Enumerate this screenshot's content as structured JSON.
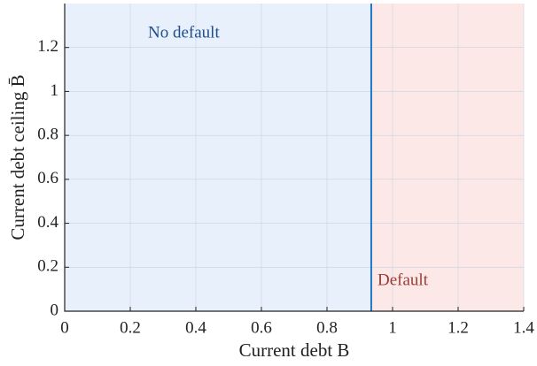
{
  "chart_data": {
    "type": "region",
    "xlabel": "Current debt B",
    "ylabel": "Current debt ceiling B̄",
    "xlim": [
      0,
      1.4
    ],
    "ylim": [
      0,
      1.4
    ],
    "xticks": [
      0,
      0.2,
      0.4,
      0.6,
      0.8,
      1,
      1.2,
      1.4
    ],
    "yticks": [
      0,
      0.2,
      0.4,
      0.6,
      0.8,
      1,
      1.2
    ],
    "grid": true,
    "boundary": {
      "x": 0.935,
      "color": "#1f77c4"
    },
    "regions": [
      {
        "name": "No default",
        "color": "#e8f0fc",
        "label_color": "#1f4e8c"
      },
      {
        "name": "Default",
        "color": "#fde8e8",
        "label_color": "#9c3a33"
      }
    ]
  }
}
